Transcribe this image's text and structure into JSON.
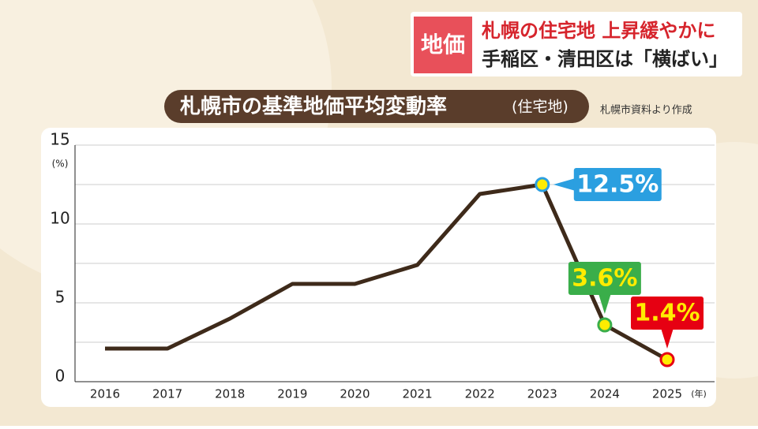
{
  "header": {
    "tag": "地価",
    "headline": "札幌の住宅地 上昇緩やかに",
    "subheadline": "手稲区・清田区は「横ばい」"
  },
  "chart_data": {
    "type": "line",
    "title": "札幌市の基準地価平均変動率",
    "title_note": "(住宅地)",
    "source": "札幌市資料より作成",
    "y_unit": "(%)",
    "x_unit": "(年)",
    "categories": [
      "2016",
      "2017",
      "2018",
      "2019",
      "2020",
      "2021",
      "2022",
      "2023",
      "2024",
      "2025"
    ],
    "values": [
      2.1,
      2.1,
      4.0,
      6.2,
      6.2,
      7.4,
      11.9,
      12.5,
      3.6,
      1.4
    ],
    "value_labels": [
      null,
      null,
      null,
      null,
      null,
      null,
      null,
      "12.5%",
      "3.6%",
      "1.4%"
    ],
    "label_colors": [
      null,
      null,
      null,
      null,
      null,
      null,
      null,
      "#2b9fe0",
      "#3aae4a",
      "#e60012"
    ],
    "color": "#3e2a1a",
    "ylim": [
      0,
      15
    ],
    "yticks": [
      0,
      5,
      10,
      15
    ],
    "minor_yticks": [
      2.5,
      7.5,
      12.5
    ],
    "grid": true
  }
}
